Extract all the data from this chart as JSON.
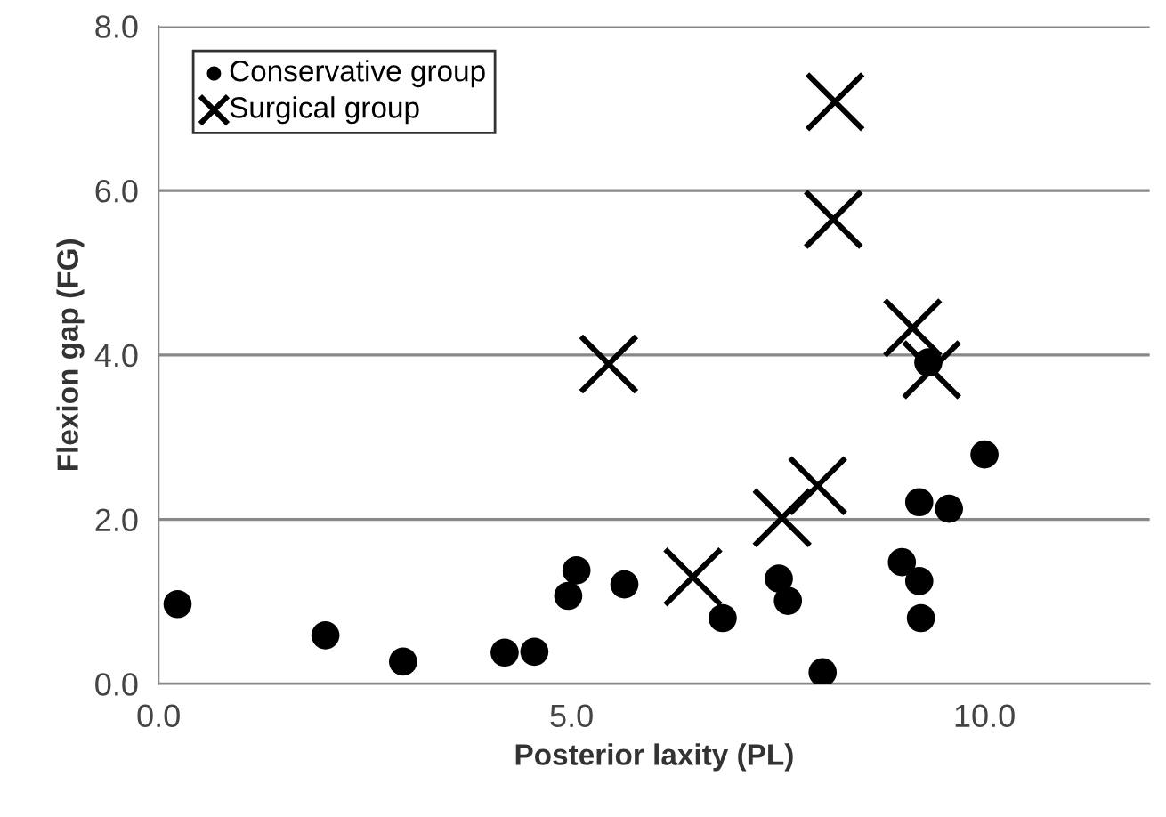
{
  "chart_data": {
    "type": "scatter",
    "xlabel": "Posterior laxity (PL)",
    "ylabel": "Flexion gap (FG)",
    "series": [
      {
        "name": "Conservative group",
        "color": "#000000",
        "marker": "circle",
        "x": [
          0.23,
          2.02,
          2.96,
          4.19,
          4.55,
          4.96,
          5.06,
          5.64,
          6.83,
          7.51,
          7.62,
          8.04,
          9.0,
          9.21,
          9.23,
          9.21,
          9.57,
          10.0,
          9.32
        ],
        "values": [
          0.97,
          0.59,
          0.27,
          0.38,
          0.39,
          1.07,
          1.38,
          1.21,
          0.8,
          1.28,
          1.01,
          0.14,
          1.48,
          1.25,
          0.8,
          2.21,
          2.13,
          2.79,
          3.91
        ]
      },
      {
        "name": "Surgical group",
        "color": "#000000",
        "marker": "cross",
        "x": [
          5.45,
          6.47,
          7.55,
          7.98,
          8.19,
          8.17,
          9.13,
          9.36
        ],
        "values": [
          3.89,
          1.3,
          2.02,
          2.41,
          7.08,
          5.65,
          4.33,
          3.82
        ]
      }
    ],
    "xlim": [
      0,
      12
    ],
    "xticks": [
      {
        "value": 0,
        "label": "0.0"
      },
      {
        "value": 5,
        "label": "5.0"
      },
      {
        "value": 10,
        "label": "10.0"
      }
    ],
    "ylim": [
      0,
      8
    ],
    "yticks": [
      {
        "value": 0,
        "label": "0.0"
      },
      {
        "value": 2,
        "label": "2.0"
      },
      {
        "value": 4,
        "label": "4.0"
      },
      {
        "value": 6,
        "label": "6.0"
      },
      {
        "value": 8,
        "label": "8.0"
      }
    ],
    "grid": "y",
    "legend": "top left"
  }
}
